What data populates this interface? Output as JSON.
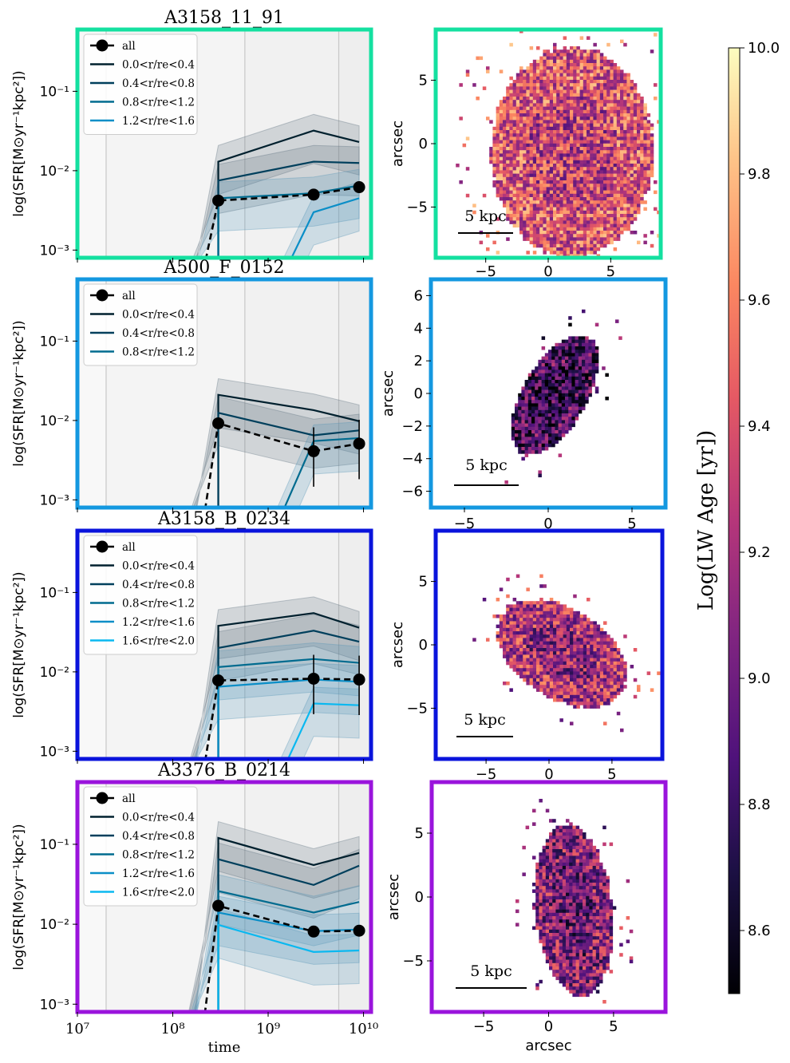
{
  "colorbar": {
    "label": "Log(LW Age [yr])",
    "range": [
      8.5,
      10.0
    ],
    "ticks": [
      "8.6",
      "8.8",
      "9.0",
      "9.2",
      "9.4",
      "9.6",
      "9.8",
      "10.0"
    ],
    "tick_values": [
      8.6,
      8.8,
      9.0,
      9.2,
      9.4,
      9.6,
      9.8,
      10.0
    ],
    "colormap": "magma"
  },
  "shared": {
    "ylabel": "log(SFR[M⊙yr⁻¹kpc²])",
    "xlabel": "time",
    "map_ylabel": "arcsec",
    "map_xlabel": "arcsec",
    "scalebar_label": "5 kpc",
    "legend_all": "all",
    "x_ticks": [
      "10⁷",
      "10⁸",
      "10⁹",
      "10¹⁰"
    ],
    "y_ticks": [
      "10⁻³",
      "10⁻²",
      "10⁻¹"
    ],
    "vlines_time": [
      20000000.0,
      570000000.0,
      5500000000.0
    ]
  },
  "chart_data": [
    {
      "type": "line",
      "title": "A3158_11_91",
      "frame_color": "#14e0a0",
      "xscale": "log",
      "yscale": "log",
      "xlim": [
        10000000.0,
        12000000000.0
      ],
      "ylim": [
        0.0008,
        0.6
      ],
      "x": [
        300000000.0,
        3000000000.0,
        9000000000.0
      ],
      "series": [
        {
          "name": "all",
          "values": [
            0.0042,
            0.005,
            0.0062
          ]
        },
        {
          "name": "0.0<r/re<0.4",
          "values": [
            0.013,
            0.032,
            0.023
          ]
        },
        {
          "name": "0.4<r/re<0.8",
          "values": [
            0.0075,
            0.013,
            0.0125
          ]
        },
        {
          "name": "0.8<r/re<1.2",
          "values": [
            0.0045,
            0.0052,
            0.0065
          ]
        },
        {
          "name": "1.2<r/re<1.6",
          "values": [
            1e-05,
            0.003,
            0.0045
          ]
        }
      ],
      "map": {
        "xticks": [
          "−5",
          "0",
          "5"
        ],
        "yticks": [
          "5",
          "0",
          "−5"
        ],
        "extent": [
          -9,
          9
        ],
        "ylim": [
          -9,
          9
        ]
      }
    },
    {
      "type": "line",
      "title": "A500_F_0152",
      "frame_color": "#1498e0",
      "xscale": "log",
      "yscale": "log",
      "xlim": [
        10000000.0,
        12000000000.0
      ],
      "ylim": [
        0.0008,
        0.6
      ],
      "x": [
        300000000.0,
        3000000000.0,
        9000000000.0
      ],
      "series": [
        {
          "name": "all",
          "values": [
            0.0092,
            0.0041,
            0.0051
          ]
        },
        {
          "name": "0.0<r/re<0.4",
          "values": [
            0.021,
            0.0135,
            0.0098
          ]
        },
        {
          "name": "0.4<r/re<0.8",
          "values": [
            0.0125,
            0.0065,
            0.0075
          ]
        },
        {
          "name": "0.8<r/re<1.2",
          "values": [
            1e-05,
            0.0055,
            0.006
          ]
        }
      ],
      "map": {
        "xticks": [
          "−5",
          "0",
          "5"
        ],
        "yticks": [
          "6",
          "4",
          "2",
          "0",
          "−2",
          "−4",
          "−6"
        ],
        "extent": [
          -7,
          7
        ],
        "ylim": [
          -7,
          7
        ]
      }
    },
    {
      "type": "line",
      "title": "A3158_B_0234",
      "frame_color": "#0a14dc",
      "xscale": "log",
      "yscale": "log",
      "xlim": [
        10000000.0,
        12000000000.0
      ],
      "ylim": [
        0.0008,
        0.6
      ],
      "x": [
        300000000.0,
        3000000000.0,
        9000000000.0
      ],
      "series": [
        {
          "name": "all",
          "values": [
            0.0078,
            0.0082,
            0.008
          ]
        },
        {
          "name": "0.0<r/re<0.4",
          "values": [
            0.038,
            0.055,
            0.036
          ]
        },
        {
          "name": "0.4<r/re<0.8",
          "values": [
            0.02,
            0.033,
            0.024
          ]
        },
        {
          "name": "0.8<r/re<1.2",
          "values": [
            0.0115,
            0.0145,
            0.013
          ]
        },
        {
          "name": "1.2<r/re<1.6",
          "values": [
            0.0065,
            0.008,
            0.0075
          ]
        },
        {
          "name": "1.6<r/re<2.0",
          "values": [
            1e-05,
            0.004,
            0.0038
          ]
        }
      ],
      "map": {
        "xticks": [
          "−5",
          "0",
          "5"
        ],
        "yticks": [
          "5",
          "0",
          "−5"
        ],
        "extent": [
          -9,
          9
        ],
        "ylim": [
          -9,
          9
        ]
      }
    },
    {
      "type": "line",
      "title": "A3376_B_0214",
      "frame_color": "#9a14dc",
      "xscale": "log",
      "yscale": "log",
      "xlim": [
        10000000.0,
        12000000000.0
      ],
      "ylim": [
        0.0008,
        0.6
      ],
      "x": [
        300000000.0,
        3000000000.0,
        9000000000.0
      ],
      "series": [
        {
          "name": "all",
          "values": [
            0.017,
            0.0081,
            0.0083
          ]
        },
        {
          "name": "0.0<r/re<0.4",
          "values": [
            0.12,
            0.055,
            0.078
          ]
        },
        {
          "name": "0.4<r/re<0.8",
          "values": [
            0.065,
            0.031,
            0.054
          ]
        },
        {
          "name": "0.8<r/re<1.2",
          "values": [
            0.026,
            0.014,
            0.019
          ]
        },
        {
          "name": "1.2<r/re<1.6",
          "values": [
            0.014,
            0.0082,
            0.0086
          ]
        },
        {
          "name": "1.6<r/re<2.0",
          "values": [
            0.0098,
            0.0045,
            0.0047
          ]
        }
      ],
      "map": {
        "xticks": [
          "−5",
          "0",
          "5"
        ],
        "yticks": [
          "5",
          "0",
          "−5"
        ],
        "extent": [
          -9,
          9
        ],
        "ylim": [
          -9,
          9
        ]
      }
    }
  ]
}
